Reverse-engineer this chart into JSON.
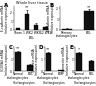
{
  "panel_A": {
    "label": "A",
    "title": "Whole liver tissue",
    "xlabel": "BDL",
    "categories": [
      "Sham",
      "1 WK",
      "2 WKS",
      "12 WKS"
    ],
    "values": [
      0.15,
      1.8,
      0.55,
      0.35
    ],
    "errors": [
      0.05,
      0.5,
      0.2,
      0.1
    ],
    "ylabel": "E-cadherin mRNA\n(relative expression)",
    "bar_color": "#111111",
    "sig_markers": [
      "",
      "**",
      "",
      ""
    ],
    "ylim": [
      0,
      2.8
    ],
    "yticks": [
      0,
      1,
      2
    ]
  },
  "panel_B": {
    "label": "B",
    "title": "",
    "xlabel": "",
    "categories": [
      "Primary\ncholangiocytes",
      "BDL"
    ],
    "values": [
      0.08,
      1.7
    ],
    "errors": [
      0.02,
      0.15
    ],
    "ylabel": "E-cadherin mRNA\n(relative expression)",
    "bar_color": "#111111",
    "sig_markers": [
      "",
      "**"
    ],
    "ylim": [
      0,
      2.2
    ],
    "yticks": [
      0,
      1,
      2
    ]
  },
  "panel_C": {
    "label": "C",
    "title": "",
    "xlabel": "Cholangiocytes",
    "categories": [
      "Normal\ncholangiocytes",
      "BDL"
    ],
    "values": [
      1.6,
      0.55
    ],
    "errors": [
      0.12,
      0.08
    ],
    "ylabel": "S100A4 mRNA\n(relative expression)",
    "bar_color": "#111111",
    "sig_markers": [
      "**",
      ""
    ],
    "ylim": [
      0,
      2.0
    ],
    "yticks": [
      0,
      1,
      2
    ]
  },
  "panel_D": {
    "label": "D",
    "title": "",
    "xlabel": "Cholangiocytes",
    "categories": [
      "Normal\ncholangiocytes",
      "BDL"
    ],
    "values": [
      1.55,
      0.1
    ],
    "errors": [
      0.1,
      0.03
    ],
    "ylabel": "Vimentin mRNA\n(relative expression)",
    "bar_color": "#111111",
    "sig_markers": [
      "**",
      ""
    ],
    "ylim": [
      0,
      2.0
    ],
    "yticks": [
      0,
      1,
      2
    ]
  },
  "panel_E": {
    "label": "E",
    "title": "",
    "xlabel": "Cholangiocytes",
    "categories": [
      "Normal\ncholangiocytes",
      "BDL"
    ],
    "values": [
      1.5,
      0.85
    ],
    "errors": [
      0.1,
      0.12
    ],
    "ylabel": "Fibronectin mRNA\n(relative expression)",
    "bar_color": "#111111",
    "sig_markers": [
      "*",
      ""
    ],
    "ylim": [
      0,
      2.0
    ],
    "yticks": [
      0,
      1,
      2
    ]
  }
}
